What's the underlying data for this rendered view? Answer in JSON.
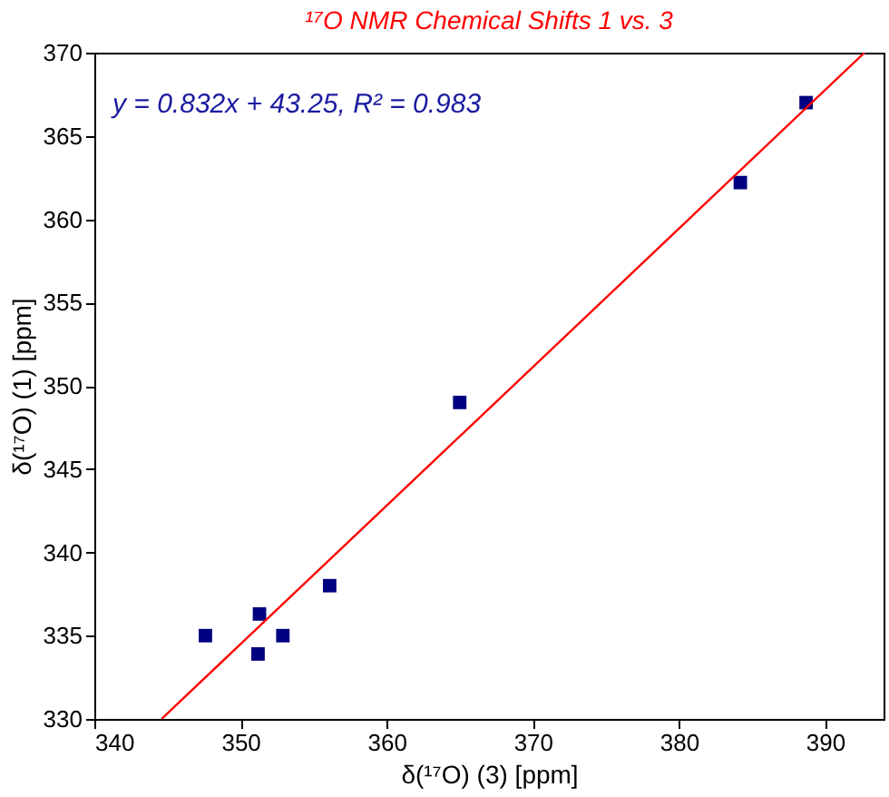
{
  "chart_data": {
    "type": "scatter",
    "title": "¹⁷O NMR Chemical Shifts 1 vs. 3",
    "xlabel": "δ(¹⁷O) (3) [ppm]",
    "ylabel": "δ(¹⁷O) (1) [ppm]",
    "annotations": [
      "y = 0.832x + 43.25, R² = 0.983"
    ],
    "x": [
      347.6,
      351.3,
      351.2,
      352.9,
      356.1,
      365.0,
      384.2,
      388.7
    ],
    "series": [
      {
        "color": "#000080",
        "values": [
          335.0,
          336.3,
          333.9,
          335.0,
          338.0,
          349.0,
          362.2,
          367.0
        ],
        "marker": "square"
      },
      {
        "type": "line",
        "color": "#ff0000",
        "x": [
          344.6,
          392.7
        ],
        "values": [
          330,
          370
        ],
        "marker": "none",
        "line_style": "solid"
      }
    ],
    "xlim": [
      340,
      394
    ],
    "xticks": [
      340,
      350,
      360,
      370,
      380,
      390
    ],
    "ylim": [
      330,
      370
    ],
    "yticks": [
      330,
      335,
      340,
      345,
      350,
      355,
      360,
      365,
      370
    ],
    "grid": false
  }
}
